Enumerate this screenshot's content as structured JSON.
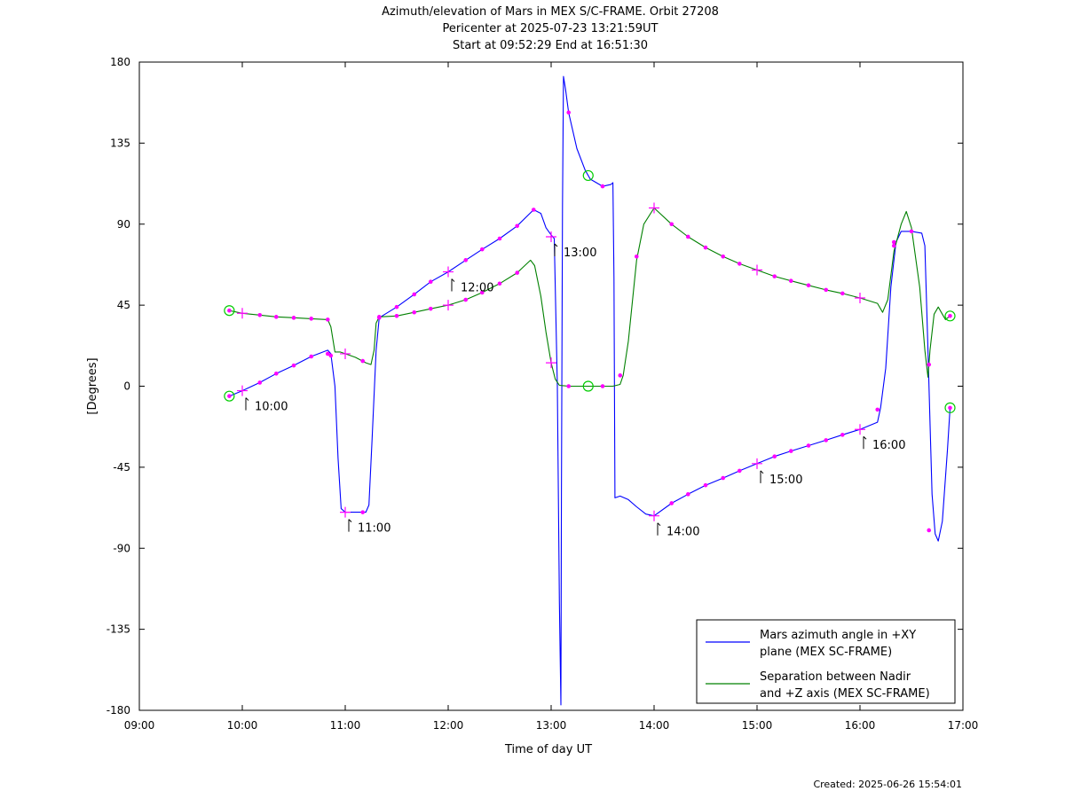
{
  "chart_data": {
    "type": "line",
    "title_lines": [
      "Azimuth/elevation of Mars in MEX S/C-FRAME.  Orbit 27208",
      "Pericenter at 2025-07-23 13:21:59UT",
      "Start at 09:52:29 End at 16:51:30"
    ],
    "xlabel": "Time of day UT",
    "ylabel": "[Degrees]",
    "xlim": [
      9,
      17
    ],
    "ylim": [
      -180,
      180
    ],
    "xticks": [
      {
        "v": 9,
        "label": "09:00"
      },
      {
        "v": 10,
        "label": "10:00"
      },
      {
        "v": 11,
        "label": "11:00"
      },
      {
        "v": 12,
        "label": "12:00"
      },
      {
        "v": 13,
        "label": "13:00"
      },
      {
        "v": 14,
        "label": "14:00"
      },
      {
        "v": 15,
        "label": "15:00"
      },
      {
        "v": 16,
        "label": "16:00"
      },
      {
        "v": 17,
        "label": "17:00"
      }
    ],
    "yticks": [
      {
        "v": 180,
        "label": "180"
      },
      {
        "v": 135,
        "label": "135"
      },
      {
        "v": 90,
        "label": "90"
      },
      {
        "v": 45,
        "label": "45"
      },
      {
        "v": 0,
        "label": "0"
      },
      {
        "v": -45,
        "label": "-45"
      },
      {
        "v": -90,
        "label": "-90"
      },
      {
        "v": -135,
        "label": "-135"
      },
      {
        "v": -180,
        "label": "-180"
      }
    ],
    "legend_position": "bottom-right",
    "series": [
      {
        "name": "Mars azimuth angle in +XY plane (MEX SC-FRAME)",
        "legend_lines": [
          "Mars azimuth angle in +XY",
          "plane (MEX SC-FRAME)"
        ],
        "color": "#0000ff",
        "points": [
          [
            9.874,
            -5.5
          ],
          [
            10.0,
            -2.5
          ],
          [
            10.17,
            2
          ],
          [
            10.33,
            7
          ],
          [
            10.5,
            11.5
          ],
          [
            10.67,
            16.5
          ],
          [
            10.83,
            20
          ],
          [
            10.86,
            18
          ],
          [
            10.9,
            0
          ],
          [
            10.93,
            -40
          ],
          [
            10.96,
            -68
          ],
          [
            11.0,
            -70
          ],
          [
            11.1,
            -70
          ],
          [
            11.2,
            -70
          ],
          [
            11.23,
            -66
          ],
          [
            11.26,
            -30
          ],
          [
            11.3,
            20
          ],
          [
            11.33,
            38
          ],
          [
            11.5,
            44
          ],
          [
            11.67,
            51
          ],
          [
            11.83,
            58
          ],
          [
            12.0,
            63.5
          ],
          [
            12.17,
            70
          ],
          [
            12.33,
            76
          ],
          [
            12.5,
            82
          ],
          [
            12.67,
            89
          ],
          [
            12.83,
            98
          ],
          [
            12.9,
            96
          ],
          [
            12.95,
            88
          ],
          [
            13.0,
            84
          ],
          [
            13.03,
            82
          ],
          [
            13.06,
            0
          ],
          [
            13.08,
            -120
          ],
          [
            13.095,
            -177
          ],
          [
            13.1,
            -60
          ],
          [
            13.11,
            100
          ],
          [
            13.12,
            172
          ],
          [
            13.14,
            165
          ],
          [
            13.17,
            152
          ],
          [
            13.25,
            132
          ],
          [
            13.33,
            120
          ],
          [
            13.38,
            115
          ],
          [
            13.5,
            111
          ],
          [
            13.58,
            112
          ],
          [
            13.6,
            113
          ],
          [
            13.61,
            60
          ],
          [
            13.62,
            -62
          ],
          [
            13.67,
            -61
          ],
          [
            13.75,
            -63
          ],
          [
            13.83,
            -67
          ],
          [
            13.92,
            -71
          ],
          [
            14.0,
            -72
          ],
          [
            14.17,
            -65
          ],
          [
            14.33,
            -60
          ],
          [
            14.5,
            -55
          ],
          [
            14.67,
            -51
          ],
          [
            14.83,
            -47
          ],
          [
            15.0,
            -43
          ],
          [
            15.17,
            -39
          ],
          [
            15.33,
            -36
          ],
          [
            15.5,
            -33
          ],
          [
            15.67,
            -30
          ],
          [
            15.83,
            -27
          ],
          [
            16.0,
            -24
          ],
          [
            16.17,
            -20
          ],
          [
            16.2,
            -12
          ],
          [
            16.25,
            10
          ],
          [
            16.3,
            55
          ],
          [
            16.35,
            80
          ],
          [
            16.4,
            86
          ],
          [
            16.5,
            86
          ],
          [
            16.6,
            85
          ],
          [
            16.63,
            78
          ],
          [
            16.66,
            20
          ],
          [
            16.7,
            -60
          ],
          [
            16.73,
            -82
          ],
          [
            16.76,
            -86
          ],
          [
            16.8,
            -75
          ],
          [
            16.85,
            -35
          ],
          [
            16.875,
            -12
          ]
        ],
        "markers": [
          [
            9.874,
            -5.5
          ],
          [
            10.17,
            2
          ],
          [
            10.33,
            7
          ],
          [
            10.5,
            11.5
          ],
          [
            10.67,
            16.5
          ],
          [
            10.83,
            18
          ],
          [
            11.17,
            -70
          ],
          [
            11.33,
            38
          ],
          [
            11.5,
            44
          ],
          [
            11.67,
            51
          ],
          [
            11.83,
            58
          ],
          [
            12.17,
            70
          ],
          [
            12.33,
            76
          ],
          [
            12.5,
            82
          ],
          [
            12.67,
            89
          ],
          [
            12.83,
            98
          ],
          [
            13.17,
            152
          ],
          [
            13.5,
            111
          ],
          [
            14.17,
            -65
          ],
          [
            14.33,
            -60
          ],
          [
            14.5,
            -55
          ],
          [
            14.67,
            -51
          ],
          [
            14.83,
            -47
          ],
          [
            15.17,
            -39
          ],
          [
            15.33,
            -36
          ],
          [
            15.5,
            -33
          ],
          [
            15.67,
            -30
          ],
          [
            15.83,
            -27
          ],
          [
            16.17,
            -13
          ],
          [
            16.33,
            80
          ],
          [
            16.5,
            86
          ],
          [
            16.67,
            -80
          ],
          [
            16.875,
            -12
          ]
        ]
      },
      {
        "name": "Separation between Nadir and +Z axis (MEX SC-FRAME)",
        "legend_lines": [
          "Separation between Nadir",
          "and +Z axis (MEX SC-FRAME)"
        ],
        "color": "#008000",
        "points": [
          [
            9.874,
            42
          ],
          [
            10.0,
            40.5
          ],
          [
            10.17,
            39.5
          ],
          [
            10.33,
            38.5
          ],
          [
            10.5,
            38
          ],
          [
            10.67,
            37.5
          ],
          [
            10.83,
            37
          ],
          [
            10.86,
            33
          ],
          [
            10.9,
            19
          ],
          [
            10.95,
            19
          ],
          [
            11.0,
            18
          ],
          [
            11.1,
            16
          ],
          [
            11.2,
            13
          ],
          [
            11.25,
            12
          ],
          [
            11.28,
            20
          ],
          [
            11.3,
            35
          ],
          [
            11.33,
            38.5
          ],
          [
            11.5,
            39
          ],
          [
            11.67,
            41
          ],
          [
            11.83,
            43
          ],
          [
            12.0,
            45
          ],
          [
            12.17,
            48
          ],
          [
            12.33,
            52
          ],
          [
            12.5,
            57
          ],
          [
            12.67,
            63
          ],
          [
            12.8,
            70
          ],
          [
            12.84,
            67
          ],
          [
            12.9,
            50
          ],
          [
            12.95,
            30
          ],
          [
            13.0,
            13
          ],
          [
            13.04,
            4
          ],
          [
            13.08,
            0.5
          ],
          [
            13.17,
            0
          ],
          [
            13.5,
            0
          ],
          [
            13.6,
            0
          ],
          [
            13.67,
            1
          ],
          [
            13.7,
            6
          ],
          [
            13.75,
            25
          ],
          [
            13.83,
            70
          ],
          [
            13.9,
            90
          ],
          [
            14.0,
            99
          ],
          [
            14.17,
            90
          ],
          [
            14.33,
            83
          ],
          [
            14.5,
            77
          ],
          [
            14.67,
            72
          ],
          [
            14.83,
            68
          ],
          [
            15.0,
            64.5
          ],
          [
            15.17,
            61
          ],
          [
            15.33,
            58.5
          ],
          [
            15.5,
            56
          ],
          [
            15.67,
            53.5
          ],
          [
            15.83,
            51.5
          ],
          [
            16.0,
            49
          ],
          [
            16.17,
            46
          ],
          [
            16.22,
            41
          ],
          [
            16.27,
            48
          ],
          [
            16.33,
            75
          ],
          [
            16.4,
            90
          ],
          [
            16.45,
            97
          ],
          [
            16.5,
            88
          ],
          [
            16.58,
            55
          ],
          [
            16.63,
            20
          ],
          [
            16.66,
            5
          ],
          [
            16.68,
            20
          ],
          [
            16.72,
            40
          ],
          [
            16.76,
            44
          ],
          [
            16.8,
            40
          ],
          [
            16.83,
            37
          ],
          [
            16.875,
            39
          ]
        ],
        "markers": [
          [
            9.874,
            42
          ],
          [
            10.17,
            39.5
          ],
          [
            10.33,
            38.5
          ],
          [
            10.5,
            38
          ],
          [
            10.67,
            37.5
          ],
          [
            10.83,
            37
          ],
          [
            10.86,
            17
          ],
          [
            11.17,
            14
          ],
          [
            11.33,
            38.5
          ],
          [
            11.5,
            39
          ],
          [
            11.67,
            41
          ],
          [
            11.83,
            43
          ],
          [
            12.17,
            48
          ],
          [
            12.33,
            52
          ],
          [
            12.5,
            57
          ],
          [
            12.67,
            63
          ],
          [
            13.17,
            0
          ],
          [
            13.5,
            0
          ],
          [
            13.67,
            6
          ],
          [
            13.83,
            72
          ],
          [
            14.17,
            90
          ],
          [
            14.33,
            83
          ],
          [
            14.5,
            77
          ],
          [
            14.67,
            72
          ],
          [
            14.83,
            68
          ],
          [
            15.17,
            61
          ],
          [
            15.33,
            58.5
          ],
          [
            15.5,
            56
          ],
          [
            15.67,
            53.5
          ],
          [
            15.83,
            51.5
          ],
          [
            16.33,
            78
          ],
          [
            16.67,
            12
          ],
          [
            16.875,
            39
          ]
        ]
      }
    ],
    "hour_crosses": [
      [
        10.0,
        -2.5
      ],
      [
        10.0,
        40.5
      ],
      [
        11.0,
        -70
      ],
      [
        11.0,
        18
      ],
      [
        12.0,
        63.5
      ],
      [
        12.0,
        45
      ],
      [
        13.0,
        83
      ],
      [
        13.0,
        13
      ],
      [
        14.0,
        -72
      ],
      [
        14.0,
        99
      ],
      [
        15.0,
        -43
      ],
      [
        15.0,
        64.5
      ],
      [
        16.0,
        -24
      ],
      [
        16.0,
        49
      ]
    ],
    "circle_markers": [
      [
        9.874,
        -5.5
      ],
      [
        9.874,
        42
      ],
      [
        13.36,
        117
      ],
      [
        13.36,
        0
      ],
      [
        16.875,
        -12
      ],
      [
        16.875,
        39
      ]
    ],
    "annotations": [
      {
        "x": 10.0,
        "y": -2.5,
        "text": "10:00"
      },
      {
        "x": 11.0,
        "y": -70,
        "text": "11:00"
      },
      {
        "x": 12.0,
        "y": 63.5,
        "text": "12:00"
      },
      {
        "x": 13.0,
        "y": 83,
        "text": "13:00"
      },
      {
        "x": 14.0,
        "y": -72,
        "text": "14:00"
      },
      {
        "x": 15.0,
        "y": -43,
        "text": "15:00"
      },
      {
        "x": 16.0,
        "y": -24,
        "text": "16:00"
      }
    ],
    "footer": "Created: 2025-06-26 15:54:01"
  }
}
